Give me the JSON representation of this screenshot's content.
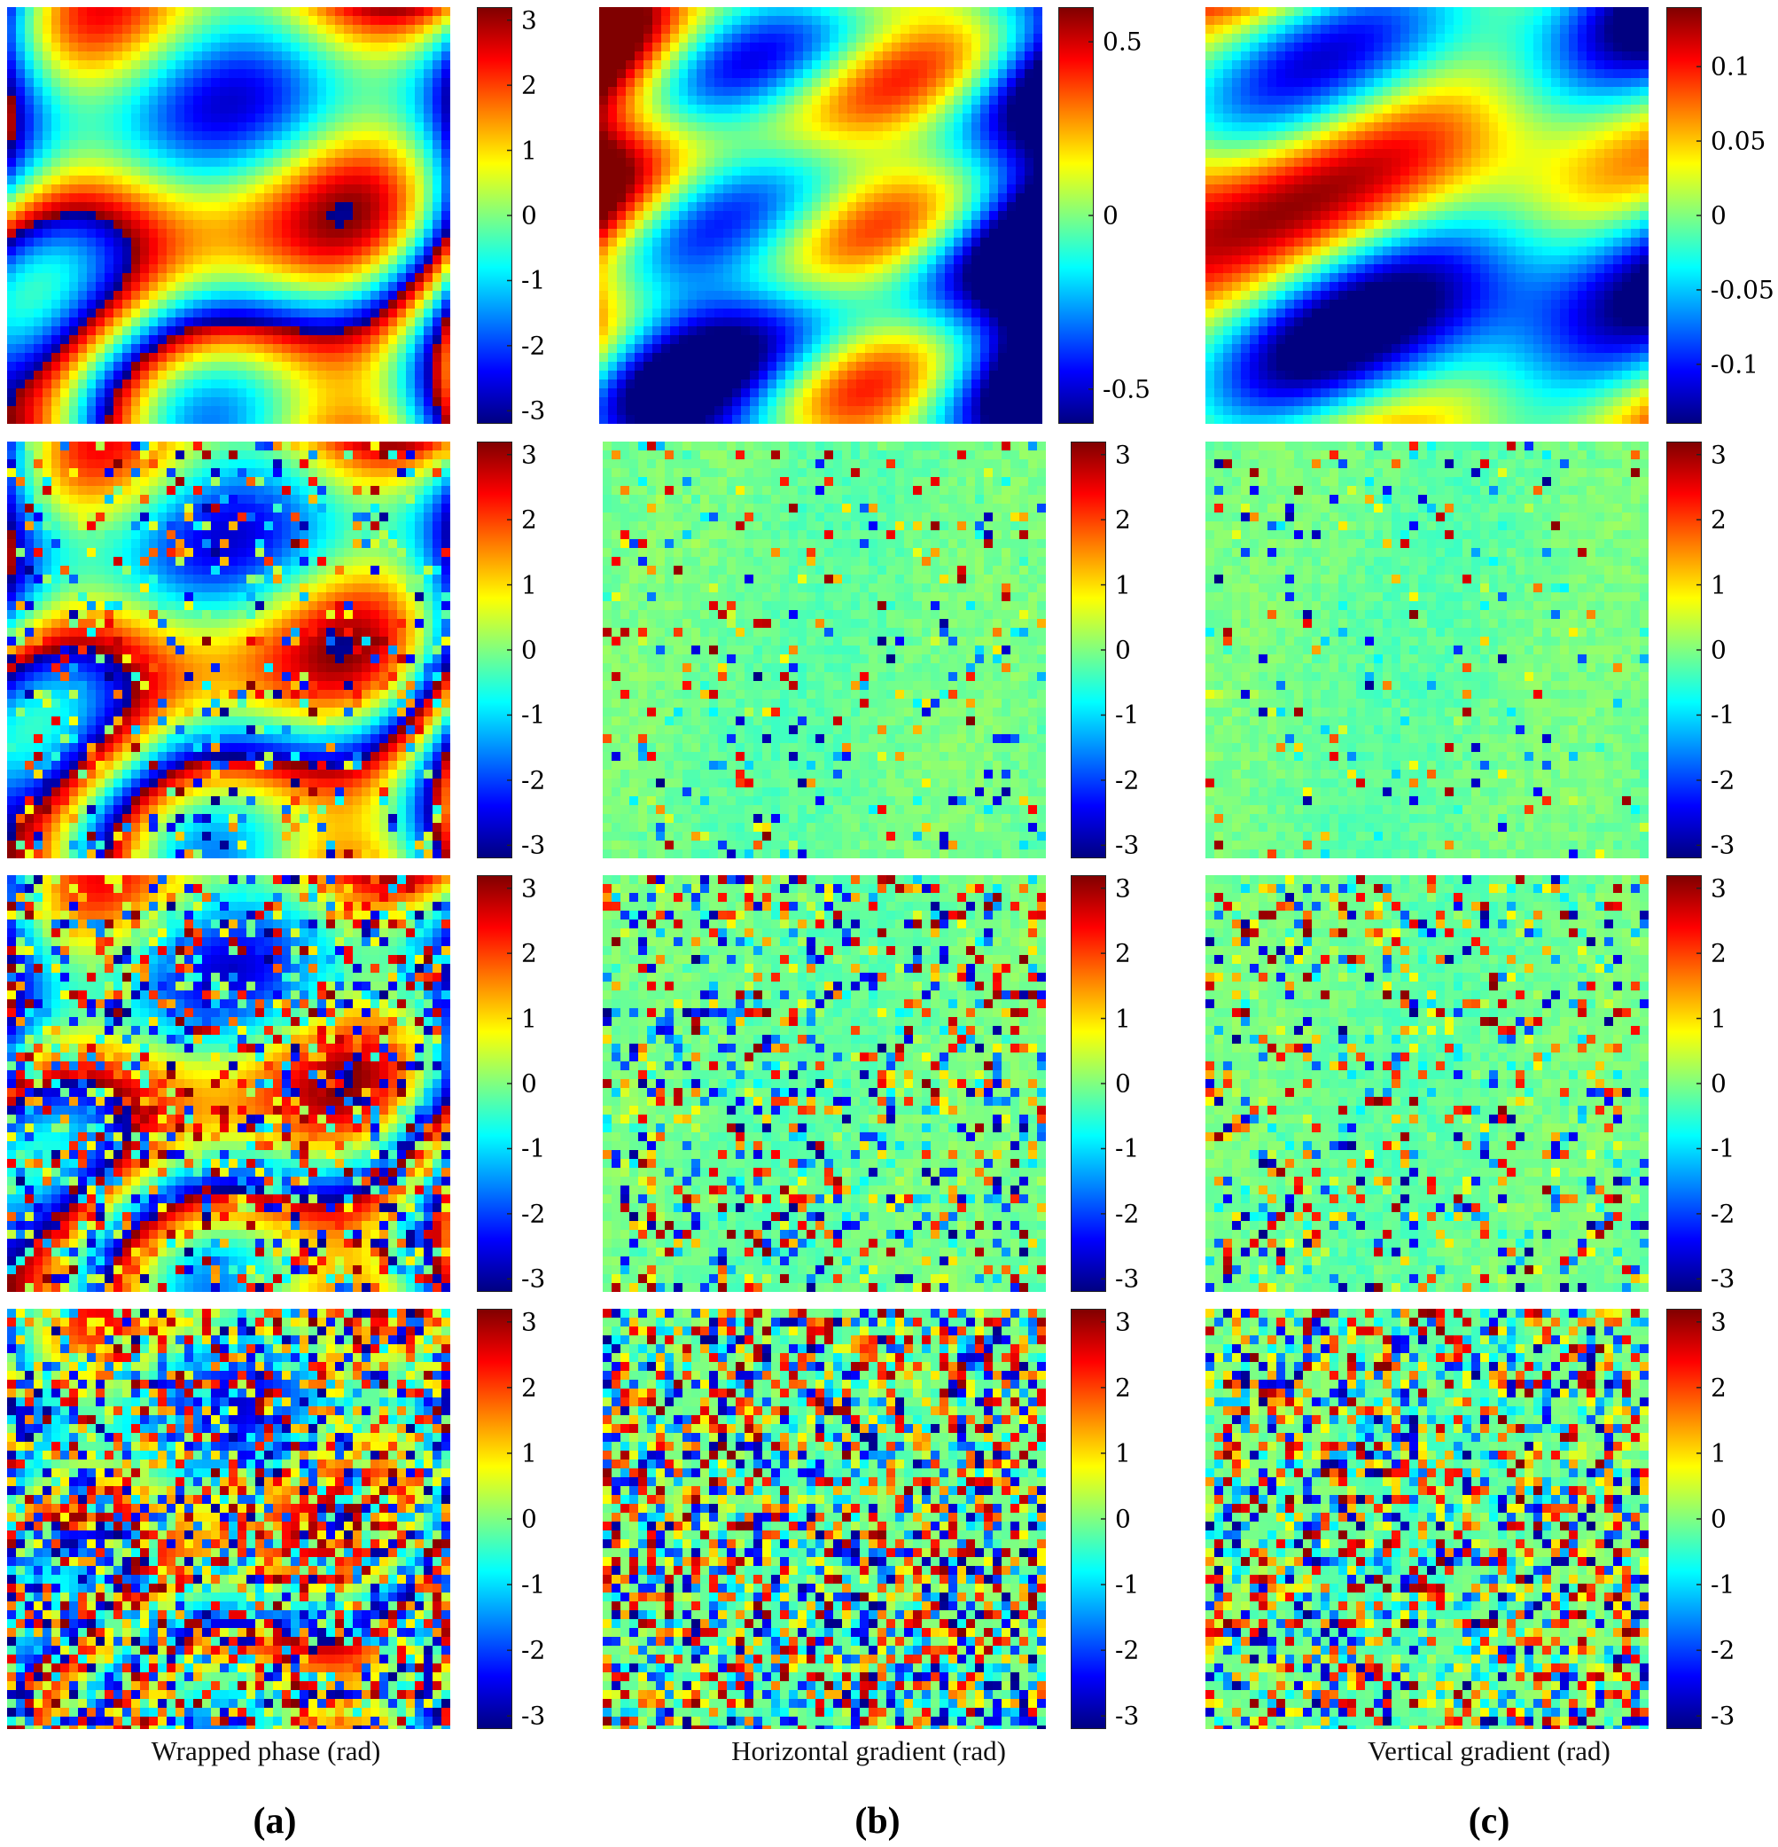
{
  "figure": {
    "column_labels": [
      "Wrapped phase (rad)",
      "Horizontal gradient (rad)",
      "Vertical gradient (rad)"
    ],
    "subfigure_labels": [
      "(a)",
      "(b)",
      "(c)"
    ]
  },
  "chart_data": [
    {
      "type": "heatmap",
      "row": 0,
      "col": 0,
      "kind": "wrapped",
      "noise": 0.0,
      "colormap": "jet",
      "colorbar_ticks": [
        "3",
        "2",
        "1",
        "0",
        "-1",
        "-2",
        "-3"
      ],
      "colorbar_range": [
        -3.2,
        3.2
      ],
      "tick_values": [
        3,
        2,
        1,
        0,
        -1,
        -2,
        -3
      ]
    },
    {
      "type": "heatmap",
      "row": 0,
      "col": 1,
      "kind": "hgrad",
      "noise": 0.0,
      "colormap": "jet",
      "colorbar_ticks": [
        "0.5",
        "0",
        "-0.5"
      ],
      "colorbar_range": [
        -0.6,
        0.6
      ],
      "tick_values": [
        0.5,
        0,
        -0.5
      ]
    },
    {
      "type": "heatmap",
      "row": 0,
      "col": 2,
      "kind": "vgrad",
      "noise": 0.0,
      "colormap": "jet",
      "colorbar_ticks": [
        "0.1",
        "0.05",
        "0",
        "-0.05",
        "-0.1"
      ],
      "colorbar_range": [
        -0.14,
        0.14
      ],
      "tick_values": [
        0.1,
        0.05,
        0,
        -0.05,
        -0.1
      ]
    },
    {
      "type": "heatmap",
      "row": 1,
      "col": 0,
      "kind": "wrapped",
      "noise": 0.18,
      "colormap": "jet",
      "colorbar_ticks": [
        "3",
        "2",
        "1",
        "0",
        "-1",
        "-2",
        "-3"
      ],
      "colorbar_range": [
        -3.2,
        3.2
      ],
      "tick_values": [
        3,
        2,
        1,
        0,
        -1,
        -2,
        -3
      ]
    },
    {
      "type": "heatmap",
      "row": 1,
      "col": 1,
      "kind": "noise",
      "noise": 0.12,
      "colormap": "jet",
      "colorbar_ticks": [
        "3",
        "2",
        "1",
        "0",
        "-1",
        "-2",
        "-3"
      ],
      "colorbar_range": [
        -3.2,
        3.2
      ],
      "tick_values": [
        3,
        2,
        1,
        0,
        -1,
        -2,
        -3
      ]
    },
    {
      "type": "heatmap",
      "row": 1,
      "col": 2,
      "kind": "noise",
      "noise": 0.08,
      "colormap": "jet",
      "colorbar_ticks": [
        "3",
        "2",
        "1",
        "0",
        "-1",
        "-2",
        "-3"
      ],
      "colorbar_range": [
        -3.2,
        3.2
      ],
      "tick_values": [
        3,
        2,
        1,
        0,
        -1,
        -2,
        -3
      ]
    },
    {
      "type": "heatmap",
      "row": 2,
      "col": 0,
      "kind": "wrapped",
      "noise": 0.38,
      "colormap": "jet",
      "colorbar_ticks": [
        "3",
        "2",
        "1",
        "0",
        "-1",
        "-2",
        "-3"
      ],
      "colorbar_range": [
        -3.2,
        3.2
      ],
      "tick_values": [
        3,
        2,
        1,
        0,
        -1,
        -2,
        -3
      ]
    },
    {
      "type": "heatmap",
      "row": 2,
      "col": 1,
      "kind": "noise",
      "noise": 0.35,
      "colormap": "jet",
      "colorbar_ticks": [
        "3",
        "2",
        "1",
        "0",
        "-1",
        "-2",
        "-3"
      ],
      "colorbar_range": [
        -3.2,
        3.2
      ],
      "tick_values": [
        3,
        2,
        1,
        0,
        -1,
        -2,
        -3
      ]
    },
    {
      "type": "heatmap",
      "row": 2,
      "col": 2,
      "kind": "noise",
      "noise": 0.3,
      "colormap": "jet",
      "colorbar_ticks": [
        "3",
        "2",
        "1",
        "0",
        "-1",
        "-2",
        "-3"
      ],
      "colorbar_range": [
        -3.2,
        3.2
      ],
      "tick_values": [
        3,
        2,
        1,
        0,
        -1,
        -2,
        -3
      ]
    },
    {
      "type": "heatmap",
      "row": 3,
      "col": 0,
      "kind": "wrapped",
      "noise": 0.6,
      "colormap": "jet",
      "colorbar_ticks": [
        "3",
        "2",
        "1",
        "0",
        "-1",
        "-2",
        "-3"
      ],
      "colorbar_range": [
        -3.2,
        3.2
      ],
      "tick_values": [
        3,
        2,
        1,
        0,
        -1,
        -2,
        -3
      ]
    },
    {
      "type": "heatmap",
      "row": 3,
      "col": 1,
      "kind": "noise",
      "noise": 0.7,
      "colormap": "jet",
      "colorbar_ticks": [
        "3",
        "2",
        "1",
        "0",
        "-1",
        "-2",
        "-3"
      ],
      "colorbar_range": [
        -3.2,
        3.2
      ],
      "tick_values": [
        3,
        2,
        1,
        0,
        -1,
        -2,
        -3
      ]
    },
    {
      "type": "heatmap",
      "row": 3,
      "col": 2,
      "kind": "noise",
      "noise": 0.65,
      "colormap": "jet",
      "colorbar_ticks": [
        "3",
        "2",
        "1",
        "0",
        "-1",
        "-2",
        "-3"
      ],
      "colorbar_range": [
        -3.2,
        3.2
      ],
      "tick_values": [
        3,
        2,
        1,
        0,
        -1,
        -2,
        -3
      ]
    }
  ]
}
